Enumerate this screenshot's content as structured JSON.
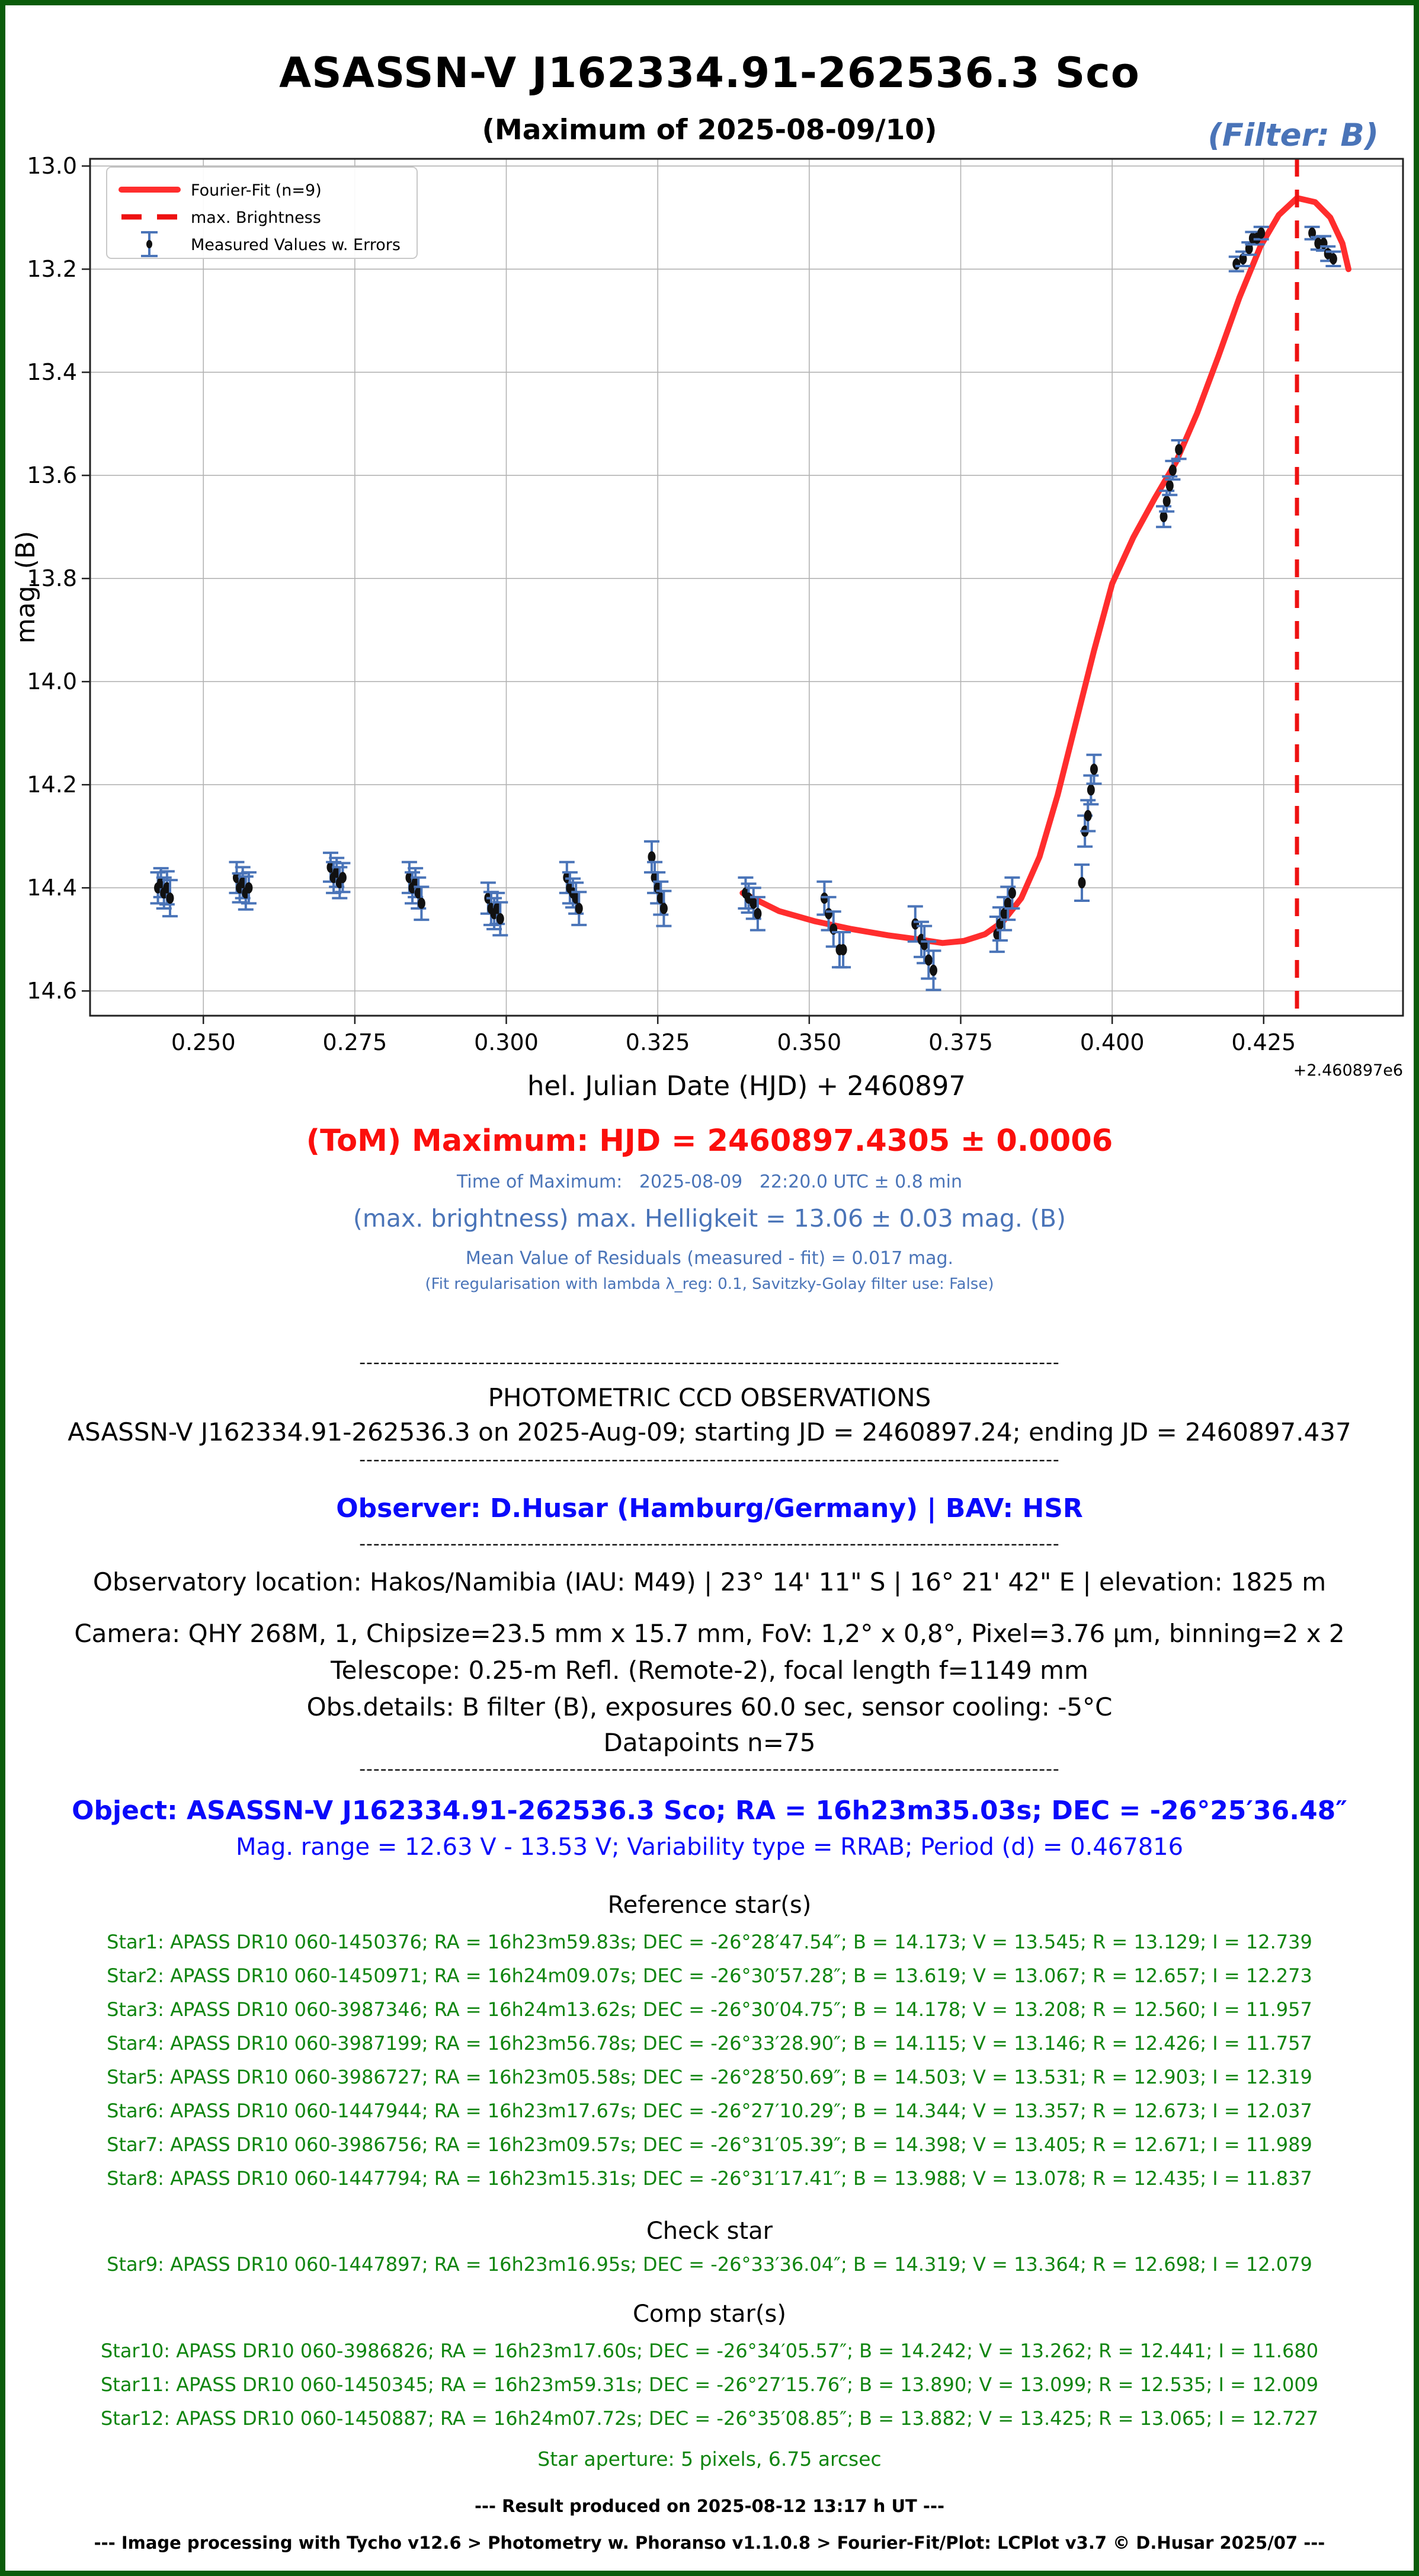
{
  "page": {
    "title": "ASASSN-V J162334.91-262536.3 Sco",
    "subtitle": "(Maximum of 2025-08-09/10)",
    "filter_label": "(Filter: B)",
    "border_color": "#0a5c0a",
    "accent_blue": "#4a74b8",
    "accent_green": "#0f850f",
    "accent_red": "#fb0f0c",
    "separator": "----------------------------------------------------------------------------------------------------"
  },
  "chart_data": {
    "type": "scatter",
    "xlabel": "hel. Julian Date (HJD) + 2460897",
    "ylabel": "mag. (B)",
    "x_offset_label": "+2.460897e6",
    "xlim": [
      0.2313,
      0.448
    ],
    "ylim_inverted": [
      14.648,
      12.986
    ],
    "xticks": [
      0.25,
      0.275,
      0.3,
      0.325,
      0.35,
      0.375,
      0.4,
      0.425
    ],
    "xtick_labels": [
      "0.250",
      "0.275",
      "0.300",
      "0.325",
      "0.350",
      "0.375",
      "0.400",
      "0.425"
    ],
    "yticks": [
      13.0,
      13.2,
      13.4,
      13.6,
      13.8,
      14.0,
      14.2,
      14.4,
      14.6
    ],
    "ytick_labels": [
      "13.0",
      "13.2",
      "13.4",
      "13.6",
      "13.8",
      "14.0",
      "14.2",
      "14.4",
      "14.6"
    ],
    "grid": true,
    "grid_color": "#b3b3b3",
    "max_brightness_line_x": 0.4305,
    "legend": {
      "position": "upper left",
      "items": [
        {
          "label": "Fourier-Fit (n=9)",
          "glyph": "solid-line",
          "color": "#ff2d2d"
        },
        {
          "label": "max. Brightness",
          "glyph": "dashed-line",
          "color": "#ee1111"
        },
        {
          "label": "Measured Values w. Errors",
          "glyph": "errorbar",
          "color": "#4a74b8"
        }
      ]
    },
    "series": [
      {
        "name": "Measured Values w. Errors",
        "type": "scatter_errorbar",
        "marker_color": "#111111",
        "errorbar_color": "#4a74b8",
        "points_xmagerr": [
          [
            0.2425,
            14.4,
            0.03
          ],
          [
            0.243,
            14.39,
            0.028
          ],
          [
            0.2435,
            14.41,
            0.03
          ],
          [
            0.244,
            14.4,
            0.032
          ],
          [
            0.2445,
            14.42,
            0.035
          ],
          [
            0.2555,
            14.38,
            0.03
          ],
          [
            0.256,
            14.4,
            0.028
          ],
          [
            0.2565,
            14.39,
            0.03
          ],
          [
            0.257,
            14.41,
            0.032
          ],
          [
            0.2575,
            14.4,
            0.03
          ],
          [
            0.271,
            14.36,
            0.028
          ],
          [
            0.2715,
            14.38,
            0.03
          ],
          [
            0.272,
            14.37,
            0.028
          ],
          [
            0.2725,
            14.39,
            0.03
          ],
          [
            0.273,
            14.38,
            0.028
          ],
          [
            0.284,
            14.38,
            0.03
          ],
          [
            0.2845,
            14.4,
            0.03
          ],
          [
            0.285,
            14.39,
            0.028
          ],
          [
            0.2855,
            14.41,
            0.03
          ],
          [
            0.286,
            14.43,
            0.032
          ],
          [
            0.297,
            14.42,
            0.03
          ],
          [
            0.2975,
            14.44,
            0.032
          ],
          [
            0.298,
            14.45,
            0.03
          ],
          [
            0.2985,
            14.44,
            0.03
          ],
          [
            0.299,
            14.46,
            0.032
          ],
          [
            0.31,
            14.38,
            0.03
          ],
          [
            0.3105,
            14.4,
            0.03
          ],
          [
            0.311,
            14.41,
            0.028
          ],
          [
            0.3115,
            14.42,
            0.03
          ],
          [
            0.312,
            14.44,
            0.032
          ],
          [
            0.324,
            14.34,
            0.03
          ],
          [
            0.3245,
            14.38,
            0.03
          ],
          [
            0.325,
            14.4,
            0.03
          ],
          [
            0.3255,
            14.42,
            0.032
          ],
          [
            0.326,
            14.44,
            0.034
          ],
          [
            0.3395,
            14.41,
            0.03
          ],
          [
            0.34,
            14.42,
            0.028
          ],
          [
            0.3408,
            14.43,
            0.03
          ],
          [
            0.3415,
            14.45,
            0.032
          ],
          [
            0.3525,
            14.42,
            0.032
          ],
          [
            0.3532,
            14.45,
            0.032
          ],
          [
            0.354,
            14.48,
            0.034
          ],
          [
            0.355,
            14.52,
            0.034
          ],
          [
            0.3556,
            14.52,
            0.034
          ],
          [
            0.3675,
            14.47,
            0.034
          ],
          [
            0.3685,
            14.5,
            0.034
          ],
          [
            0.369,
            14.51,
            0.036
          ],
          [
            0.3697,
            14.54,
            0.036
          ],
          [
            0.3705,
            14.56,
            0.038
          ],
          [
            0.381,
            14.49,
            0.034
          ],
          [
            0.3815,
            14.47,
            0.032
          ],
          [
            0.3822,
            14.45,
            0.032
          ],
          [
            0.3828,
            14.43,
            0.032
          ],
          [
            0.3835,
            14.41,
            0.03
          ],
          [
            0.395,
            14.39,
            0.035
          ],
          [
            0.3955,
            14.29,
            0.03
          ],
          [
            0.396,
            14.26,
            0.03
          ],
          [
            0.3965,
            14.21,
            0.028
          ],
          [
            0.397,
            14.17,
            0.028
          ],
          [
            0.4085,
            13.68,
            0.02
          ],
          [
            0.409,
            13.65,
            0.02
          ],
          [
            0.4095,
            13.62,
            0.018
          ],
          [
            0.41,
            13.59,
            0.018
          ],
          [
            0.411,
            13.55,
            0.018
          ],
          [
            0.4205,
            13.19,
            0.014
          ],
          [
            0.4216,
            13.18,
            0.014
          ],
          [
            0.4226,
            13.16,
            0.012
          ],
          [
            0.4232,
            13.14,
            0.012
          ],
          [
            0.4239,
            13.14,
            0.012
          ],
          [
            0.4246,
            13.13,
            0.012
          ],
          [
            0.433,
            13.13,
            0.012
          ],
          [
            0.434,
            13.15,
            0.012
          ],
          [
            0.4349,
            13.15,
            0.014
          ],
          [
            0.4356,
            13.17,
            0.014
          ],
          [
            0.4365,
            13.18,
            0.014
          ]
        ]
      },
      {
        "name": "Fourier-Fit (n=9)",
        "type": "line",
        "color": "#ff2d2d",
        "points_xmag": [
          [
            0.339,
            14.41
          ],
          [
            0.345,
            14.445
          ],
          [
            0.351,
            14.465
          ],
          [
            0.357,
            14.48
          ],
          [
            0.363,
            14.492
          ],
          [
            0.368,
            14.5
          ],
          [
            0.372,
            14.507
          ],
          [
            0.3755,
            14.503
          ],
          [
            0.379,
            14.49
          ],
          [
            0.382,
            14.465
          ],
          [
            0.385,
            14.42
          ],
          [
            0.388,
            14.34
          ],
          [
            0.391,
            14.22
          ],
          [
            0.394,
            14.08
          ],
          [
            0.397,
            13.94
          ],
          [
            0.4,
            13.81
          ],
          [
            0.4035,
            13.72
          ],
          [
            0.407,
            13.645
          ],
          [
            0.4105,
            13.575
          ],
          [
            0.414,
            13.48
          ],
          [
            0.4175,
            13.37
          ],
          [
            0.421,
            13.255
          ],
          [
            0.4245,
            13.155
          ],
          [
            0.4275,
            13.095
          ],
          [
            0.4305,
            13.062
          ],
          [
            0.4335,
            13.07
          ],
          [
            0.436,
            13.1
          ],
          [
            0.438,
            13.15
          ],
          [
            0.439,
            13.2
          ]
        ]
      }
    ]
  },
  "results": {
    "tom_heading": "(ToM) Maximum: HJD = 2460897.4305 ± 0.0006",
    "time_of_maximum": "Time of Maximum:   2025-08-09   22:20.0 UTC ± 0.8 min",
    "max_brightness": "(max. brightness) max. Helligkeit = 13.06 ± 0.03 mag. (B)",
    "mean_residuals": "Mean Value of Residuals (measured - fit) = 0.017 mag.",
    "fit_note": "(Fit regularisation with lambda λ_reg: 0.1, Savitzky-Golay filter use: False)"
  },
  "report": {
    "heading": "PHOTOMETRIC CCD OBSERVATIONS",
    "observation_line": "ASASSN-V J162334.91-262536.3 on 2025-Aug-09; starting JD = 2460897.24; ending JD = 2460897.437",
    "observer": "Observer: D.Husar (Hamburg/Germany) | BAV: HSR",
    "location": "Observatory location: Hakos/Namibia (IAU: M49) | 23° 14' 11\" S | 16° 21' 42\" E | elevation: 1825 m",
    "camera": "Camera: QHY 268M, 1, Chipsize=23.5 mm x 15.7 mm, FoV: 1,2° x 0,8°, Pixel=3.76 μm, binning=2 x 2",
    "telescope": "Telescope: 0.25-m Refl. (Remote-2), focal length f=1149 mm",
    "obs_details": "Obs.details: B filter (B), exposures 60.0 sec, sensor cooling: -5°C",
    "datapoints": "Datapoints n=75"
  },
  "object_info": {
    "object_line": "Object: ASASSN-V J162334.91-262536.3 Sco; RA = 16h23m35.03s; DEC = -26°25′36.48″",
    "mag_range_line": "Mag. range = 12.63 V - 13.53 V; Variability type = RRAB; Period (d) = 0.467816"
  },
  "stars": {
    "reference_heading": "Reference star(s)",
    "check_heading": "Check star",
    "comp_heading": "Comp star(s)",
    "aperture": "Star aperture: 5 pixels, 6.75 arcsec",
    "reference": [
      {
        "id": "Star1",
        "catalog": "APASS DR10 060-1450376",
        "ra": "16h23m59.83s",
        "dec": "-26°28′47.54″",
        "B": "14.173",
        "V": "13.545",
        "R": "13.129",
        "I": "12.739"
      },
      {
        "id": "Star2",
        "catalog": "APASS DR10 060-1450971",
        "ra": "16h24m09.07s",
        "dec": "-26°30′57.28″",
        "B": "13.619",
        "V": "13.067",
        "R": "12.657",
        "I": "12.273"
      },
      {
        "id": "Star3",
        "catalog": "APASS DR10 060-3987346",
        "ra": "16h24m13.62s",
        "dec": "-26°30′04.75″",
        "B": "14.178",
        "V": "13.208",
        "R": "12.560",
        "I": "11.957"
      },
      {
        "id": "Star4",
        "catalog": "APASS DR10 060-3987199",
        "ra": "16h23m56.78s",
        "dec": "-26°33′28.90″",
        "B": "14.115",
        "V": "13.146",
        "R": "12.426",
        "I": "11.757"
      },
      {
        "id": "Star5",
        "catalog": "APASS DR10 060-3986727",
        "ra": "16h23m05.58s",
        "dec": "-26°28′50.69″",
        "B": "14.503",
        "V": "13.531",
        "R": "12.903",
        "I": "12.319"
      },
      {
        "id": "Star6",
        "catalog": "APASS DR10 060-1447944",
        "ra": "16h23m17.67s",
        "dec": "-26°27′10.29″",
        "B": "14.344",
        "V": "13.357",
        "R": "12.673",
        "I": "12.037"
      },
      {
        "id": "Star7",
        "catalog": "APASS DR10 060-3986756",
        "ra": "16h23m09.57s",
        "dec": "-26°31′05.39″",
        "B": "14.398",
        "V": "13.405",
        "R": "12.671",
        "I": "11.989"
      },
      {
        "id": "Star8",
        "catalog": "APASS DR10 060-1447794",
        "ra": "16h23m15.31s",
        "dec": "-26°31′17.41″",
        "B": "13.988",
        "V": "13.078",
        "R": "12.435",
        "I": "11.837"
      }
    ],
    "check": [
      {
        "id": "Star9",
        "catalog": "APASS DR10 060-1447897",
        "ra": "16h23m16.95s",
        "dec": "-26°33′36.04″",
        "B": "14.319",
        "V": "13.364",
        "R": "12.698",
        "I": "12.079"
      }
    ],
    "comp": [
      {
        "id": "Star10",
        "catalog": "APASS DR10 060-3986826",
        "ra": "16h23m17.60s",
        "dec": "-26°34′05.57″",
        "B": "14.242",
        "V": "13.262",
        "R": "12.441",
        "I": "11.680"
      },
      {
        "id": "Star11",
        "catalog": "APASS DR10 060-1450345",
        "ra": "16h23m59.31s",
        "dec": "-26°27′15.76″",
        "B": "13.890",
        "V": "13.099",
        "R": "12.535",
        "I": "12.009"
      },
      {
        "id": "Star12",
        "catalog": "APASS DR10 060-1450887",
        "ra": "16h24m07.72s",
        "dec": "-26°35′08.85″",
        "B": "13.882",
        "V": "13.425",
        "R": "13.065",
        "I": "12.727"
      }
    ]
  },
  "footer": {
    "produced": "--- Result produced on 2025-08-12 13:17 h UT ---",
    "processing": "--- Image processing with Tycho v12.6 > Photometry w. Phoranso v1.1.0.8 > Fourier-Fit/Plot: LCPlot v3.7 © D.Husar 2025/07 ---"
  }
}
